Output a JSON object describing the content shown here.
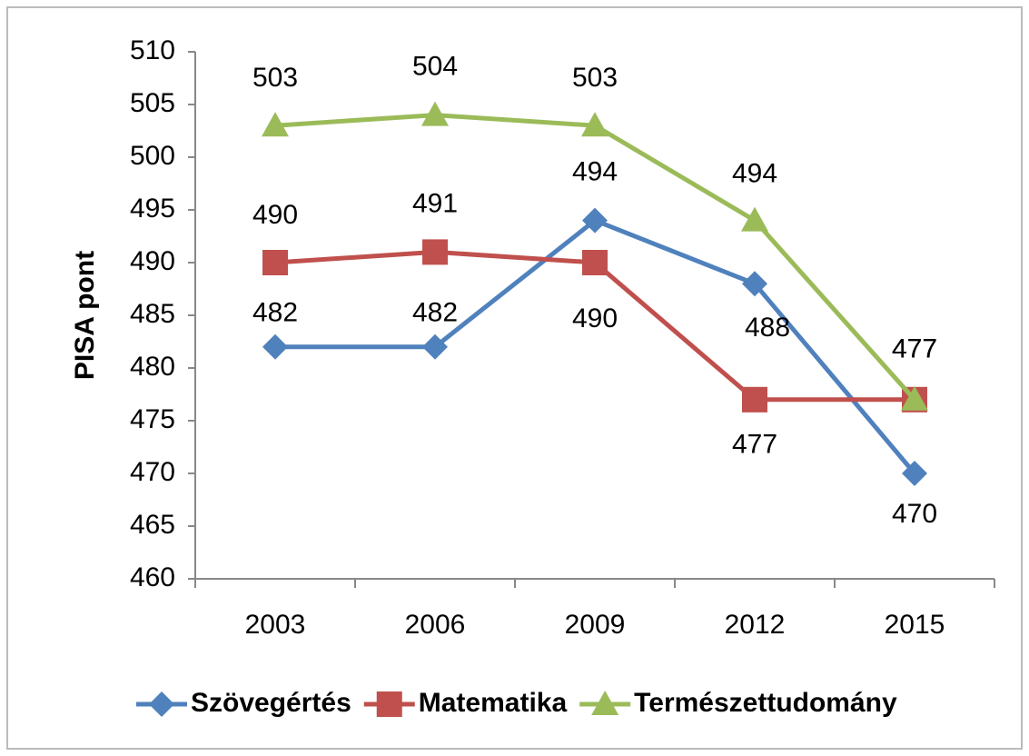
{
  "chart_data": {
    "type": "line",
    "y_label": "PISA pont",
    "categories": [
      "2003",
      "2006",
      "2009",
      "2012",
      "2015"
    ],
    "series": [
      {
        "name": "Szövegértés",
        "color": "#4f81bd",
        "marker": "diamond",
        "values": [
          482,
          482,
          494,
          488,
          470
        ]
      },
      {
        "name": "Matematika",
        "color": "#c0504d",
        "marker": "square",
        "values": [
          490,
          491,
          490,
          477,
          477
        ]
      },
      {
        "name": "Természettudomány",
        "color": "#9bbb59",
        "marker": "triangle",
        "values": [
          503,
          504,
          503,
          494,
          477
        ]
      }
    ],
    "ylim": [
      460,
      510
    ],
    "yticks": [
      460,
      465,
      470,
      475,
      480,
      485,
      490,
      495,
      500,
      505,
      510
    ],
    "legend": "bottom"
  }
}
